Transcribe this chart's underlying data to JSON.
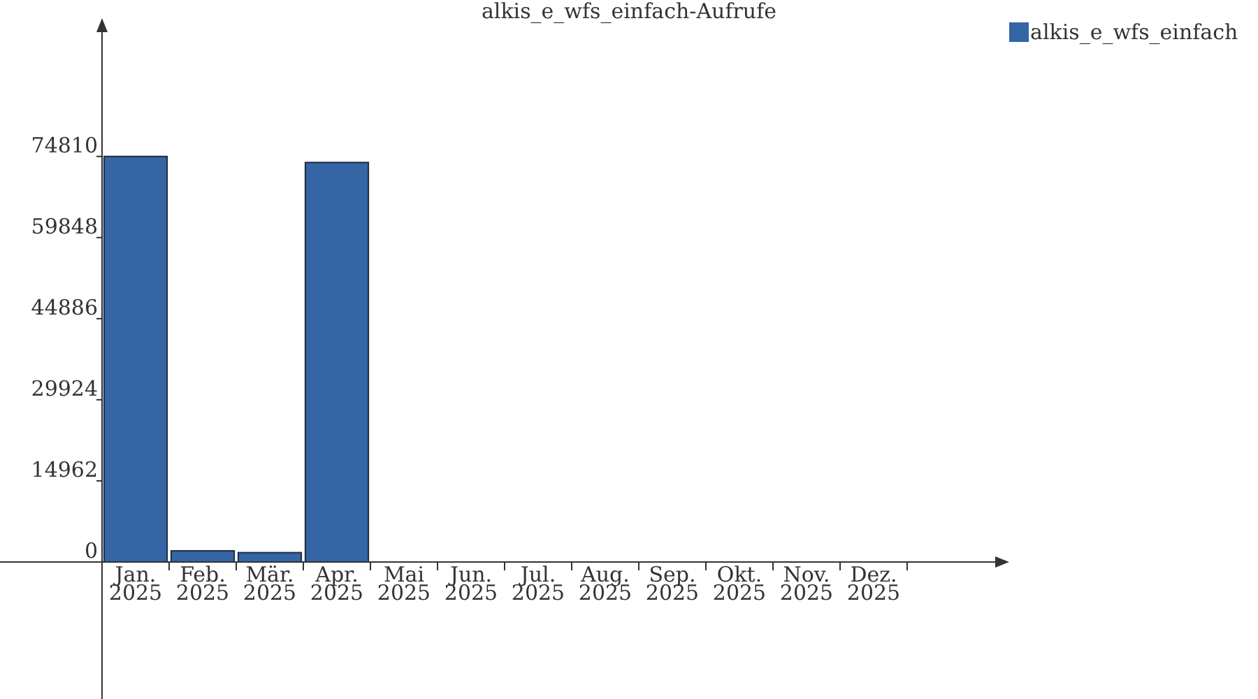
{
  "chart_data": {
    "type": "bar",
    "title": "alkis_e_wfs_einfach-Aufrufe",
    "categories": [
      "Jan.\n2025",
      "Feb.\n2025",
      "Mär.\n2025",
      "Apr.\n2025",
      "Mai\n2025",
      "Jun.\n2025",
      "Jul.\n2025",
      "Aug.\n2025",
      "Sep.\n2025",
      "Okt.\n2025",
      "Nov.\n2025",
      "Dez.\n2025"
    ],
    "series": [
      {
        "name": "alkis_e_wfs_einfach",
        "color": "#3465a4",
        "values": [
          74810,
          2060,
          1730,
          73700,
          0,
          0,
          0,
          0,
          0,
          0,
          0,
          0
        ]
      }
    ],
    "ylim": [
      0,
      99800
    ],
    "yticks": [
      0,
      14962,
      29924,
      44886,
      59848,
      74810
    ],
    "grid": false,
    "legend": "top right"
  }
}
